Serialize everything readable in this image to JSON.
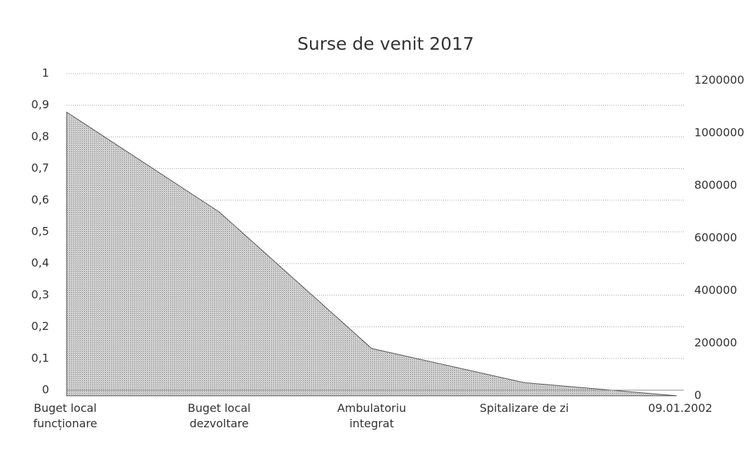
{
  "chart_data": {
    "type": "area",
    "title": "Surse de venit 2017",
    "categories": [
      "Buget local funcționare",
      "Buget local dezvoltare",
      "Ambulatoriu integrat",
      "Spitalizare de zi",
      "09.01.2002"
    ],
    "series": [
      {
        "color": "#bdbdbd",
        "axis": "y2",
        "values": [
          1080000,
          700000,
          180000,
          50000,
          0
        ]
      }
    ],
    "ylim": [
      0,
      1
    ],
    "yticks": [
      0,
      {
        "value": 0.1,
        "label": "0,1"
      },
      {
        "value": 0.2,
        "label": "0,2"
      },
      {
        "value": 0.3,
        "label": "0,3"
      },
      {
        "value": 0.4,
        "label": "0,4"
      },
      {
        "value": 0.5,
        "label": "0,5"
      },
      {
        "value": 0.6,
        "label": "0,6"
      },
      {
        "value": 0.7,
        "label": "0,7"
      },
      {
        "value": 0.8,
        "label": "0,8"
      },
      {
        "value": 0.9,
        "label": "0,9"
      },
      1
    ],
    "y2lim": [
      0,
      1200000
    ],
    "y2ticks": [
      0,
      200000,
      400000,
      600000,
      800000,
      1000000,
      1200000
    ],
    "grid": true
  }
}
